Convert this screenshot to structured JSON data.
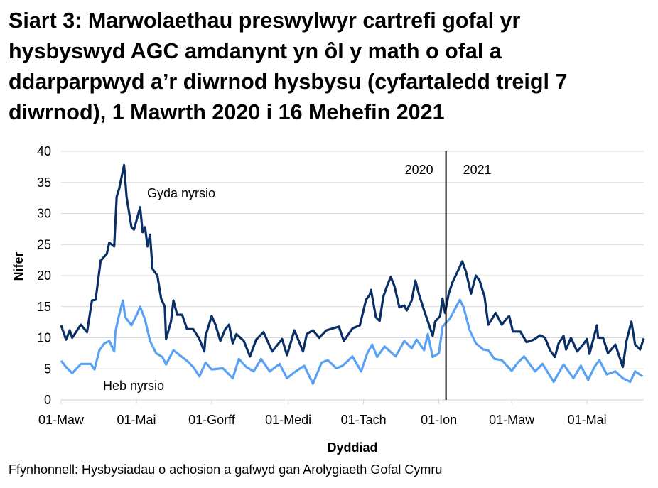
{
  "title_lines": [
    "Siart 3: Marwolaethau preswylwyr cartrefi gofal yr",
    "hysbyswyd AGC amdanynt yn ôl y math o ofal a",
    "ddarparpwyd a’r diwrnod hysbysu (cyfartaledd treigl 7",
    "diwrnod), 1 Mawrth 2020 i 16 Mehefin 2021"
  ],
  "source": "Ffynhonnell: Hysbysiadau o achosion a gafwyd gan Arolygiaeth Gofal Cymru",
  "chart_data": {
    "type": "line",
    "xlabel": "Dyddiad",
    "ylabel": "Nifer",
    "xlim": [
      "2020-03-01",
      "2021-06-16"
    ],
    "ylim": [
      0,
      40
    ],
    "yticks": [
      0,
      5,
      10,
      15,
      20,
      25,
      30,
      35,
      40
    ],
    "xticks": [
      {
        "date": "2020-03-01",
        "label": "01-Maw"
      },
      {
        "date": "2020-05-01",
        "label": "01-Mai"
      },
      {
        "date": "2020-07-01",
        "label": "01-Gorff"
      },
      {
        "date": "2020-09-01",
        "label": "01-Medi"
      },
      {
        "date": "2020-11-01",
        "label": "01-Tach"
      },
      {
        "date": "2021-01-01",
        "label": "01-Ion"
      },
      {
        "date": "2021-03-01",
        "label": "01-Maw"
      },
      {
        "date": "2021-05-01",
        "label": "01-Mai"
      }
    ],
    "grid": "horizontal",
    "year_divider": {
      "date": "2021-01-01",
      "left_label": "2020",
      "right_label": "2021"
    },
    "series": [
      {
        "name": "Gyda nyrsio",
        "color": "#0a2f66",
        "points": [
          [
            "2020-03-01",
            12
          ],
          [
            "2020-03-05",
            9.7
          ],
          [
            "2020-03-08",
            11.2
          ],
          [
            "2020-03-10",
            10
          ],
          [
            "2020-03-17",
            12.1
          ],
          [
            "2020-03-22",
            10.9
          ],
          [
            "2020-03-26",
            16
          ],
          [
            "2020-03-29",
            16.1
          ],
          [
            "2020-04-02",
            22.4
          ],
          [
            "2020-04-07",
            23.5
          ],
          [
            "2020-04-09",
            25.3
          ],
          [
            "2020-04-13",
            24.7
          ],
          [
            "2020-04-15",
            32.7
          ],
          [
            "2020-04-17",
            34
          ],
          [
            "2020-04-21",
            37.8
          ],
          [
            "2020-04-23",
            32.7
          ],
          [
            "2020-04-27",
            27.8
          ],
          [
            "2020-04-29",
            27.4
          ],
          [
            "2020-05-04",
            31
          ],
          [
            "2020-05-06",
            27
          ],
          [
            "2020-05-08",
            27.8
          ],
          [
            "2020-05-10",
            24.7
          ],
          [
            "2020-05-12",
            26.6
          ],
          [
            "2020-05-14",
            21.1
          ],
          [
            "2020-05-18",
            20
          ],
          [
            "2020-05-21",
            16.3
          ],
          [
            "2020-05-24",
            15
          ],
          [
            "2020-05-25",
            9.8
          ],
          [
            "2020-05-29",
            12.6
          ],
          [
            "2020-05-31",
            16
          ],
          [
            "2020-06-03",
            13.7
          ],
          [
            "2020-06-07",
            13.7
          ],
          [
            "2020-06-11",
            11.4
          ],
          [
            "2020-06-16",
            11.4
          ],
          [
            "2020-06-21",
            9.8
          ],
          [
            "2020-06-25",
            7.8
          ],
          [
            "2020-06-26",
            10.3
          ],
          [
            "2020-07-01",
            13.5
          ],
          [
            "2020-07-04",
            12.1
          ],
          [
            "2020-07-08",
            9.5
          ],
          [
            "2020-07-12",
            11.4
          ],
          [
            "2020-07-15",
            12.1
          ],
          [
            "2020-07-18",
            9.1
          ],
          [
            "2020-07-21",
            10.6
          ],
          [
            "2020-07-27",
            9.5
          ],
          [
            "2020-08-01",
            7
          ],
          [
            "2020-08-06",
            9.7
          ],
          [
            "2020-08-12",
            10.9
          ],
          [
            "2020-08-19",
            7.8
          ],
          [
            "2020-08-27",
            9.8
          ],
          [
            "2020-08-31",
            7.2
          ],
          [
            "2020-09-06",
            11.2
          ],
          [
            "2020-09-13",
            7.8
          ],
          [
            "2020-09-16",
            10.6
          ],
          [
            "2020-09-21",
            11.2
          ],
          [
            "2020-09-26",
            10
          ],
          [
            "2020-10-02",
            11.2
          ],
          [
            "2020-10-12",
            11.8
          ],
          [
            "2020-10-16",
            9.5
          ],
          [
            "2020-10-23",
            11.5
          ],
          [
            "2020-10-29",
            12
          ],
          [
            "2020-11-03",
            16.1
          ],
          [
            "2020-11-06",
            16.9
          ],
          [
            "2020-11-07",
            17.7
          ],
          [
            "2020-11-11",
            13.3
          ],
          [
            "2020-11-14",
            12.7
          ],
          [
            "2020-11-17",
            16.6
          ],
          [
            "2020-11-20",
            18.3
          ],
          [
            "2020-11-23",
            19.8
          ],
          [
            "2020-11-26",
            18.3
          ],
          [
            "2020-11-30",
            14.9
          ],
          [
            "2020-12-04",
            15.2
          ],
          [
            "2020-12-06",
            14.4
          ],
          [
            "2020-12-10",
            16
          ],
          [
            "2020-12-13",
            19.2
          ],
          [
            "2020-12-16",
            16.9
          ],
          [
            "2020-12-20",
            14.4
          ],
          [
            "2020-12-24",
            12.1
          ],
          [
            "2020-12-27",
            10.3
          ],
          [
            "2020-12-29",
            12.6
          ],
          [
            "2021-01-02",
            13.5
          ],
          [
            "2021-01-04",
            16.3
          ],
          [
            "2021-01-06",
            14
          ],
          [
            "2021-01-09",
            17.1
          ],
          [
            "2021-01-12",
            18.9
          ],
          [
            "2021-01-16",
            20.6
          ],
          [
            "2021-01-20",
            22.3
          ],
          [
            "2021-01-23",
            20.6
          ],
          [
            "2021-01-27",
            17.1
          ],
          [
            "2021-01-31",
            20
          ],
          [
            "2021-02-03",
            19.2
          ],
          [
            "2021-02-07",
            16.6
          ],
          [
            "2021-02-10",
            12.1
          ],
          [
            "2021-02-12",
            12.7
          ],
          [
            "2021-02-16",
            14
          ],
          [
            "2021-02-21",
            12.1
          ],
          [
            "2021-02-25",
            13.1
          ],
          [
            "2021-02-27",
            13.5
          ],
          [
            "2021-03-02",
            11
          ],
          [
            "2021-03-08",
            11
          ],
          [
            "2021-03-13",
            9.3
          ],
          [
            "2021-03-19",
            9.7
          ],
          [
            "2021-03-24",
            10.4
          ],
          [
            "2021-03-28",
            10
          ],
          [
            "2021-04-01",
            8
          ],
          [
            "2021-04-05",
            6.9
          ],
          [
            "2021-04-08",
            9.1
          ],
          [
            "2021-04-12",
            10.3
          ],
          [
            "2021-04-14",
            8.1
          ],
          [
            "2021-04-18",
            10
          ],
          [
            "2021-04-23",
            7.8
          ],
          [
            "2021-04-27",
            8.7
          ],
          [
            "2021-05-01",
            9.8
          ],
          [
            "2021-05-03",
            7.4
          ],
          [
            "2021-05-09",
            12
          ],
          [
            "2021-05-10",
            10
          ],
          [
            "2021-05-14",
            10
          ],
          [
            "2021-05-18",
            7.5
          ],
          [
            "2021-05-24",
            8.9
          ],
          [
            "2021-05-30",
            5.3
          ],
          [
            "2021-06-02",
            9.5
          ],
          [
            "2021-06-06",
            12.6
          ],
          [
            "2021-06-09",
            8.9
          ],
          [
            "2021-06-13",
            8.1
          ],
          [
            "2021-06-16",
            9.9
          ]
        ]
      },
      {
        "name": "Heb nyrsio",
        "color": "#58a1f5",
        "points": [
          [
            "2020-03-01",
            6.3
          ],
          [
            "2020-03-05",
            5.3
          ],
          [
            "2020-03-10",
            4.3
          ],
          [
            "2020-03-17",
            5.8
          ],
          [
            "2020-03-25",
            5.8
          ],
          [
            "2020-03-28",
            4.9
          ],
          [
            "2020-04-01",
            8
          ],
          [
            "2020-04-05",
            9.1
          ],
          [
            "2020-04-09",
            9.5
          ],
          [
            "2020-04-13",
            7.8
          ],
          [
            "2020-04-14",
            11
          ],
          [
            "2020-04-17",
            13.7
          ],
          [
            "2020-04-20",
            16
          ],
          [
            "2020-04-22",
            13.3
          ],
          [
            "2020-04-27",
            12
          ],
          [
            "2020-05-02",
            14
          ],
          [
            "2020-05-04",
            15
          ],
          [
            "2020-05-08",
            12.9
          ],
          [
            "2020-05-12",
            9.5
          ],
          [
            "2020-05-17",
            7.5
          ],
          [
            "2020-05-22",
            6.9
          ],
          [
            "2020-05-25",
            5.7
          ],
          [
            "2020-05-31",
            8
          ],
          [
            "2020-06-05",
            7.2
          ],
          [
            "2020-06-11",
            6.3
          ],
          [
            "2020-06-16",
            5.3
          ],
          [
            "2020-06-21",
            3.8
          ],
          [
            "2020-06-26",
            6
          ],
          [
            "2020-07-01",
            4.9
          ],
          [
            "2020-07-10",
            5.1
          ],
          [
            "2020-07-18",
            3.5
          ],
          [
            "2020-07-23",
            6.6
          ],
          [
            "2020-07-29",
            5.3
          ],
          [
            "2020-08-04",
            4.6
          ],
          [
            "2020-08-10",
            6.6
          ],
          [
            "2020-08-17",
            4.6
          ],
          [
            "2020-08-25",
            5.8
          ],
          [
            "2020-08-31",
            3.5
          ],
          [
            "2020-09-07",
            4.6
          ],
          [
            "2020-09-14",
            5.5
          ],
          [
            "2020-09-21",
            2.6
          ],
          [
            "2020-09-28",
            6
          ],
          [
            "2020-10-03",
            6.4
          ],
          [
            "2020-10-10",
            5.1
          ],
          [
            "2020-10-15",
            5.5
          ],
          [
            "2020-10-23",
            7
          ],
          [
            "2020-10-30",
            4.6
          ],
          [
            "2020-11-04",
            7.5
          ],
          [
            "2020-11-08",
            8.9
          ],
          [
            "2020-11-12",
            6.9
          ],
          [
            "2020-11-18",
            8.6
          ],
          [
            "2020-11-27",
            7
          ],
          [
            "2020-12-04",
            9.5
          ],
          [
            "2020-12-10",
            8.3
          ],
          [
            "2020-12-14",
            9.7
          ],
          [
            "2020-12-20",
            8
          ],
          [
            "2020-12-23",
            10.6
          ],
          [
            "2020-12-27",
            6.9
          ],
          [
            "2021-01-01",
            7.5
          ],
          [
            "2021-01-04",
            11.8
          ],
          [
            "2021-01-10",
            13.1
          ],
          [
            "2021-01-14",
            14.6
          ],
          [
            "2021-01-18",
            16.1
          ],
          [
            "2021-01-21",
            14.9
          ],
          [
            "2021-01-26",
            11.2
          ],
          [
            "2021-01-31",
            9.1
          ],
          [
            "2021-02-06",
            8.1
          ],
          [
            "2021-02-10",
            8
          ],
          [
            "2021-02-15",
            6.6
          ],
          [
            "2021-02-21",
            6.4
          ],
          [
            "2021-03-01",
            4.7
          ],
          [
            "2021-03-06",
            6
          ],
          [
            "2021-03-11",
            7
          ],
          [
            "2021-03-20",
            4.6
          ],
          [
            "2021-03-26",
            5.8
          ],
          [
            "2021-04-04",
            2.9
          ],
          [
            "2021-04-12",
            5.7
          ],
          [
            "2021-04-20",
            3.5
          ],
          [
            "2021-04-26",
            5.5
          ],
          [
            "2021-05-02",
            3.2
          ],
          [
            "2021-05-07",
            5.3
          ],
          [
            "2021-05-11",
            6.4
          ],
          [
            "2021-05-17",
            4.1
          ],
          [
            "2021-05-24",
            4.6
          ],
          [
            "2021-05-30",
            3.5
          ],
          [
            "2021-06-05",
            2.9
          ],
          [
            "2021-06-09",
            4.6
          ],
          [
            "2021-06-15",
            3.8
          ]
        ]
      }
    ]
  }
}
